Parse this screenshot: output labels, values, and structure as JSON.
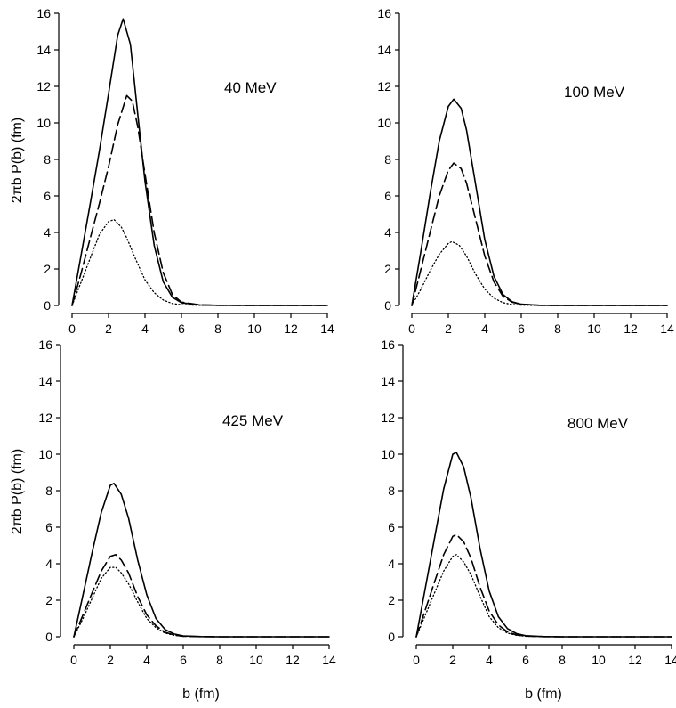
{
  "figure": {
    "ylabel": "2πb P(b) (fm)",
    "xlabel": "b (fm)"
  },
  "chart_data": [
    {
      "type": "line",
      "label": "40 MeV",
      "xlim": [
        0,
        14
      ],
      "ylim": [
        0,
        16
      ],
      "xticks": [
        0,
        2,
        4,
        6,
        8,
        10,
        12,
        14
      ],
      "yticks": [
        0,
        2,
        4,
        6,
        8,
        10,
        12,
        14,
        16
      ],
      "ylabel": "2πb P(b) (fm)",
      "xlabel": "",
      "series": [
        {
          "style": "solid",
          "x": [
            0,
            0.5,
            1,
            1.5,
            2,
            2.5,
            2.8,
            3.2,
            3.6,
            4,
            4.5,
            5,
            5.5,
            6,
            7,
            8,
            10,
            14
          ],
          "y": [
            0,
            2.8,
            5.6,
            8.5,
            11.6,
            14.8,
            15.7,
            14.3,
            10.5,
            6.8,
            3.3,
            1.3,
            0.45,
            0.15,
            0.03,
            0.01,
            0,
            0
          ]
        },
        {
          "style": "dashed",
          "x": [
            0,
            0.5,
            1,
            1.5,
            2,
            2.5,
            3,
            3.3,
            3.6,
            4,
            4.5,
            5,
            5.5,
            6,
            7,
            8,
            10,
            14
          ],
          "y": [
            0,
            1.8,
            3.7,
            5.6,
            7.6,
            9.9,
            11.5,
            11.2,
            9.8,
            7.2,
            4.0,
            1.8,
            0.6,
            0.18,
            0.03,
            0.01,
            0,
            0
          ]
        },
        {
          "style": "dotted",
          "x": [
            0,
            0.5,
            1,
            1.5,
            2,
            2.3,
            2.7,
            3,
            3.5,
            4,
            4.5,
            5,
            5.5,
            6,
            7,
            8,
            10,
            14
          ],
          "y": [
            0,
            1.3,
            2.6,
            3.9,
            4.6,
            4.7,
            4.3,
            3.7,
            2.5,
            1.4,
            0.7,
            0.3,
            0.1,
            0.04,
            0.01,
            0,
            0,
            0
          ]
        }
      ]
    },
    {
      "type": "line",
      "label": "100 MeV",
      "xlim": [
        0,
        14
      ],
      "ylim": [
        0,
        16
      ],
      "xticks": [
        0,
        2,
        4,
        6,
        8,
        10,
        12,
        14
      ],
      "yticks": [
        0,
        2,
        4,
        6,
        8,
        10,
        12,
        14,
        16
      ],
      "ylabel": "",
      "xlabel": "",
      "series": [
        {
          "style": "solid",
          "x": [
            0,
            0.5,
            1,
            1.5,
            2,
            2.3,
            2.7,
            3,
            3.5,
            4,
            4.5,
            5,
            5.5,
            6,
            7,
            8,
            10,
            14
          ],
          "y": [
            0,
            3.0,
            6.1,
            9.0,
            10.9,
            11.3,
            10.8,
            9.6,
            6.6,
            3.6,
            1.6,
            0.6,
            0.2,
            0.07,
            0.01,
            0,
            0,
            0
          ]
        },
        {
          "style": "dashed",
          "x": [
            0,
            0.5,
            1,
            1.5,
            2,
            2.3,
            2.7,
            3,
            3.5,
            4,
            4.5,
            5,
            5.5,
            6,
            7,
            8,
            10,
            14
          ],
          "y": [
            0,
            2.0,
            4.0,
            6.0,
            7.4,
            7.8,
            7.5,
            6.7,
            4.7,
            2.7,
            1.3,
            0.5,
            0.18,
            0.06,
            0.01,
            0,
            0,
            0
          ]
        },
        {
          "style": "dotted",
          "x": [
            0,
            0.5,
            1,
            1.5,
            2,
            2.2,
            2.6,
            3,
            3.5,
            4,
            4.5,
            5,
            5.5,
            6,
            7,
            8,
            10,
            14
          ],
          "y": [
            0,
            0.9,
            1.9,
            2.8,
            3.4,
            3.5,
            3.3,
            2.7,
            1.7,
            0.9,
            0.4,
            0.15,
            0.05,
            0.02,
            0,
            0,
            0,
            0
          ]
        }
      ]
    },
    {
      "type": "line",
      "label": "425 MeV",
      "xlim": [
        0,
        14
      ],
      "ylim": [
        0,
        16
      ],
      "xticks": [
        0,
        2,
        4,
        6,
        8,
        10,
        12,
        14
      ],
      "yticks": [
        0,
        2,
        4,
        6,
        8,
        10,
        12,
        14,
        16
      ],
      "ylabel": "2πb P(b) (fm)",
      "xlabel": "b (fm)",
      "series": [
        {
          "style": "solid",
          "x": [
            0,
            0.5,
            1,
            1.5,
            2,
            2.2,
            2.6,
            3,
            3.5,
            4,
            4.5,
            5,
            5.5,
            6,
            7,
            8,
            10,
            14
          ],
          "y": [
            0,
            2.3,
            4.6,
            6.8,
            8.3,
            8.4,
            7.8,
            6.5,
            4.2,
            2.3,
            1.0,
            0.4,
            0.15,
            0.05,
            0.01,
            0,
            0,
            0
          ]
        },
        {
          "style": "dashed",
          "x": [
            0,
            0.5,
            1,
            1.5,
            2,
            2.3,
            2.6,
            3,
            3.5,
            4,
            4.5,
            5,
            5.5,
            6,
            7,
            8,
            10,
            14
          ],
          "y": [
            0,
            1.2,
            2.4,
            3.6,
            4.4,
            4.5,
            4.2,
            3.5,
            2.2,
            1.2,
            0.6,
            0.25,
            0.1,
            0.03,
            0.01,
            0,
            0,
            0
          ]
        },
        {
          "style": "dotted",
          "x": [
            0,
            0.5,
            1,
            1.5,
            2,
            2.3,
            2.6,
            3,
            3.5,
            4,
            4.5,
            5,
            5.5,
            6,
            7,
            8,
            10,
            14
          ],
          "y": [
            0,
            1.0,
            2.1,
            3.2,
            3.8,
            3.8,
            3.5,
            2.9,
            1.9,
            1.0,
            0.5,
            0.2,
            0.08,
            0.03,
            0.01,
            0,
            0,
            0
          ]
        }
      ]
    },
    {
      "type": "line",
      "label": "800 MeV",
      "xlim": [
        0,
        14
      ],
      "ylim": [
        0,
        16
      ],
      "xticks": [
        0,
        2,
        4,
        6,
        8,
        10,
        12,
        14
      ],
      "yticks": [
        0,
        2,
        4,
        6,
        8,
        10,
        12,
        14,
        16
      ],
      "ylabel": "",
      "xlabel": "b (fm)",
      "series": [
        {
          "style": "solid",
          "x": [
            0,
            0.5,
            1,
            1.5,
            2,
            2.2,
            2.6,
            3,
            3.5,
            4,
            4.5,
            5,
            5.5,
            6,
            7,
            8,
            10,
            14
          ],
          "y": [
            0,
            2.7,
            5.4,
            8.1,
            10.0,
            10.1,
            9.3,
            7.6,
            4.8,
            2.5,
            1.1,
            0.45,
            0.17,
            0.06,
            0.01,
            0,
            0,
            0
          ]
        },
        {
          "style": "dashed",
          "x": [
            0,
            0.5,
            1,
            1.5,
            2,
            2.2,
            2.6,
            3,
            3.5,
            4,
            4.5,
            5,
            5.5,
            6,
            7,
            8,
            10,
            14
          ],
          "y": [
            0,
            1.5,
            3.0,
            4.5,
            5.5,
            5.6,
            5.2,
            4.3,
            2.7,
            1.4,
            0.65,
            0.27,
            0.1,
            0.04,
            0.01,
            0,
            0,
            0
          ]
        },
        {
          "style": "dotted",
          "x": [
            0,
            0.5,
            1,
            1.5,
            2,
            2.2,
            2.6,
            3,
            3.5,
            4,
            4.5,
            5,
            5.5,
            6,
            7,
            8,
            10,
            14
          ],
          "y": [
            0,
            1.2,
            2.4,
            3.6,
            4.4,
            4.5,
            4.1,
            3.4,
            2.2,
            1.1,
            0.5,
            0.2,
            0.08,
            0.03,
            0.01,
            0,
            0,
            0
          ]
        }
      ]
    }
  ]
}
